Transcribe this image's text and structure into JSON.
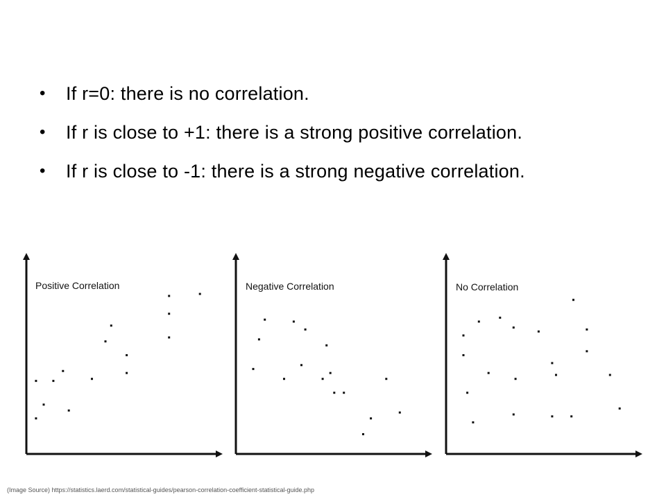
{
  "bullets": [
    {
      "text": "If r=0: there is no correlation."
    },
    {
      "text": "If r is close to +1: there is a strong positive correlation."
    },
    {
      "text": "If r is close to -1: there is a strong negative correlation."
    }
  ],
  "bullet_symbol": "•",
  "source_text": "(Image Source) https://statistics.laerd.com/statistical-guides/pearson-correlation-coefficient-statistical-guide.php",
  "chart_data": [
    {
      "type": "scatter",
      "title": "Positive Correlation",
      "xlim": [
        0,
        100
      ],
      "ylim": [
        0,
        100
      ],
      "grid": false,
      "x": [
        5,
        5,
        9,
        14,
        19,
        22,
        34,
        41,
        44,
        52,
        52,
        74,
        74,
        74,
        90
      ],
      "y": [
        18,
        37,
        25,
        37,
        42,
        22,
        38,
        57,
        65,
        50,
        41,
        71,
        59,
        80,
        81
      ]
    },
    {
      "type": "scatter",
      "title": "Negative Correlation",
      "xlim": [
        0,
        100
      ],
      "ylim": [
        0,
        100
      ],
      "grid": false,
      "x": [
        9,
        12,
        15,
        25,
        30,
        34,
        36,
        45,
        47,
        49,
        51,
        56,
        66,
        70,
        78,
        85
      ],
      "y": [
        43,
        58,
        68,
        38,
        67,
        45,
        63,
        38,
        55,
        41,
        31,
        31,
        10,
        18,
        38,
        21
      ]
    },
    {
      "type": "scatter",
      "title": "No Correlation",
      "xlim": [
        0,
        100
      ],
      "ylim": [
        0,
        100
      ],
      "grid": false,
      "x": [
        9,
        9,
        11,
        14,
        17,
        22,
        28,
        35,
        35,
        36,
        48,
        55,
        55,
        57,
        65,
        66,
        73,
        73,
        85,
        90
      ],
      "y": [
        60,
        50,
        31,
        16,
        67,
        41,
        69,
        64,
        20,
        38,
        62,
        19,
        46,
        40,
        19,
        78,
        63,
        52,
        40,
        23
      ]
    }
  ]
}
